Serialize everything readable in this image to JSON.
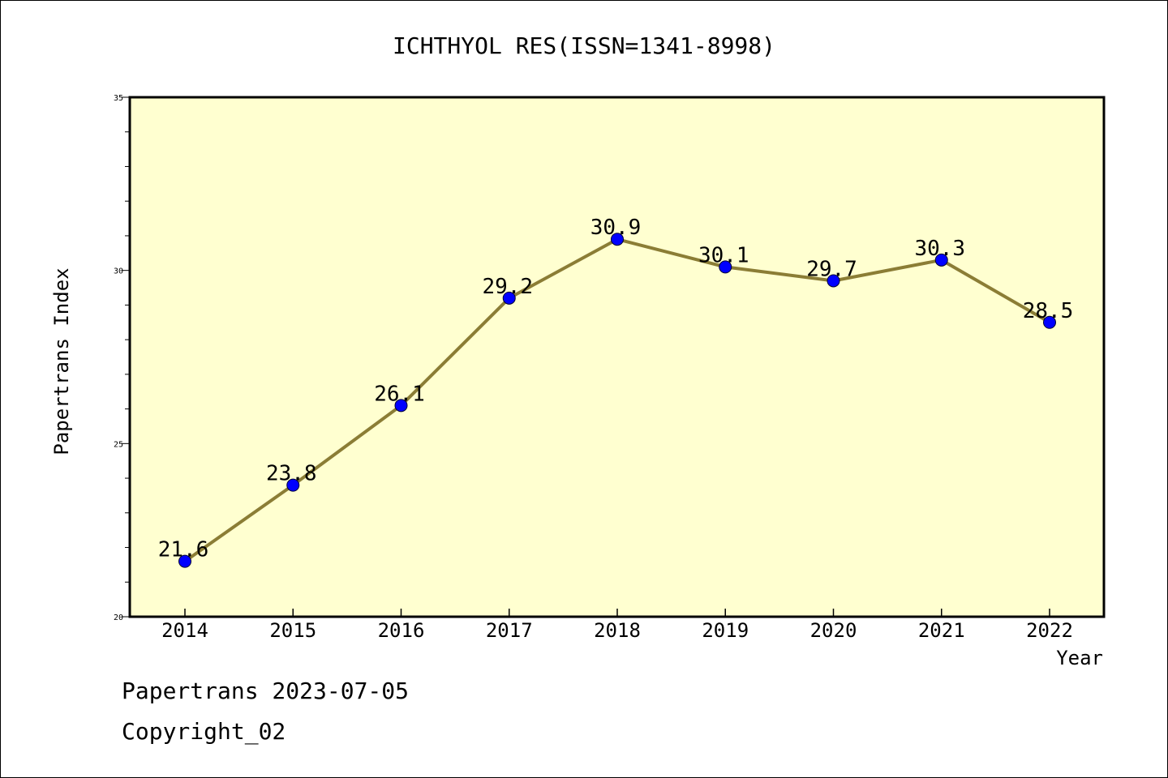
{
  "chart_data": {
    "type": "line",
    "title": "ICHTHYOL RES(ISSN=1341-8998)",
    "xlabel": "Year",
    "ylabel": "Papertrans Index",
    "categories": [
      "2014",
      "2015",
      "2016",
      "2017",
      "2018",
      "2019",
      "2020",
      "2021",
      "2022"
    ],
    "series": [
      {
        "values": [
          21.6,
          23.8,
          26.1,
          29.2,
          30.9,
          30.1,
          29.7,
          30.3,
          28.5
        ]
      }
    ],
    "data_labels": [
      "21.6",
      "23.8",
      "26.1",
      "29.2",
      "30.9",
      "30.1",
      "29.7",
      "30.3",
      "28.5"
    ],
    "ylim": [
      20,
      35
    ],
    "y_ticks": [
      "20",
      "25",
      "30",
      "35"
    ],
    "grid": false,
    "legend": "none",
    "colors": {
      "plot_background": "#ffffd0",
      "line": "#8b7d35",
      "marker": "#0000ff"
    }
  },
  "footer": {
    "line1": "Papertrans 2023-07-05",
    "line2": "Copyright_02"
  }
}
